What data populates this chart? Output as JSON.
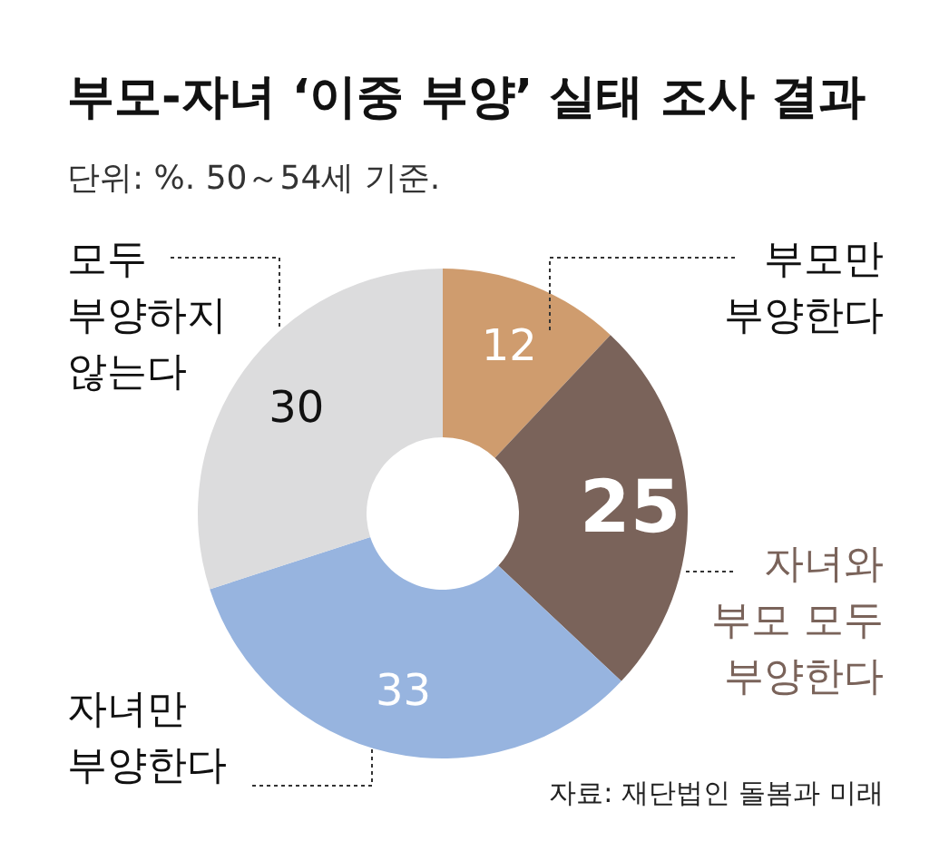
{
  "chart_data": {
    "type": "donut",
    "title": "부모-자녀 ‘이중 부양’ 실태 조사 결과",
    "subtitle": "단위: %. 50～54세 기준.",
    "categories": [
      "부모만\n부양한다",
      "자녀와\n부모 모두\n부양한다",
      "자녀만\n부양한다",
      "모두\n부양하지\n않는다"
    ],
    "values": [
      12,
      25,
      33,
      30
    ],
    "colors": [
      "#cf9c6e",
      "#7a635a",
      "#97b4df",
      "#dcdcdd"
    ],
    "data_labels": true,
    "annotations": [
      "자료: 재단법인 돌봄과 미래"
    ]
  }
}
